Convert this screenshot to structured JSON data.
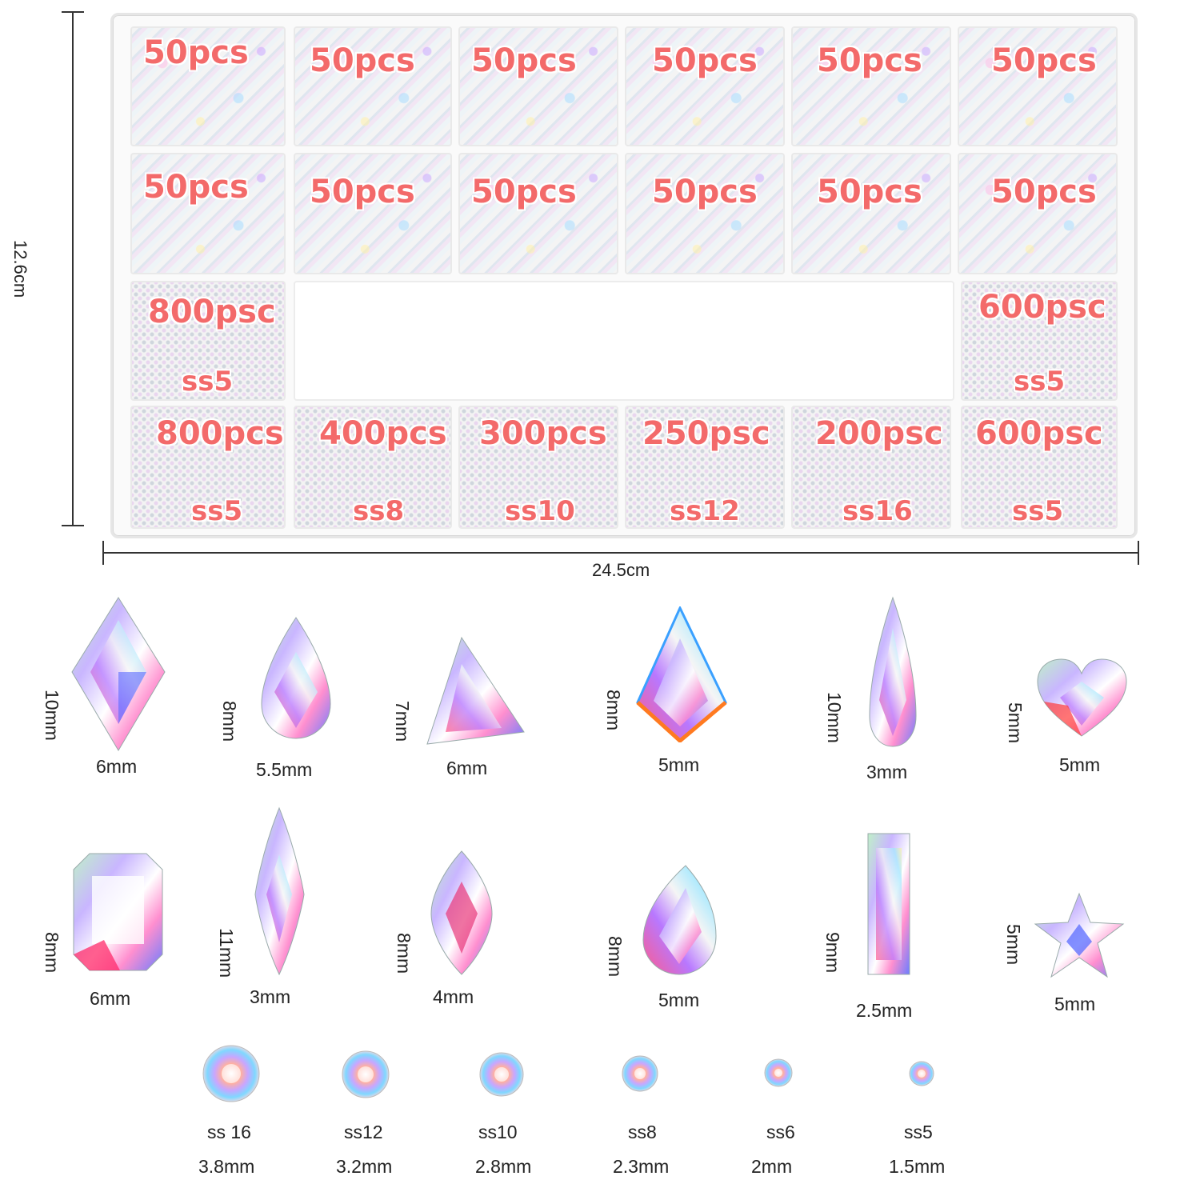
{
  "dimensions": {
    "height": "12.6cm",
    "width": "24.5cm"
  },
  "case": {
    "row1": [
      {
        "count": "50pcs"
      },
      {
        "count": "50pcs"
      },
      {
        "count": "50pcs"
      },
      {
        "count": "50pcs"
      },
      {
        "count": "50pcs"
      },
      {
        "count": "50pcs"
      }
    ],
    "row2": [
      {
        "count": "50pcs"
      },
      {
        "count": "50pcs"
      },
      {
        "count": "50pcs"
      },
      {
        "count": "50pcs"
      },
      {
        "count": "50pcs"
      },
      {
        "count": "50pcs"
      }
    ],
    "row3": [
      {
        "count": "800psc",
        "size": "ss5"
      },
      {
        "count": "600psc",
        "size": "ss5"
      }
    ],
    "row4": [
      {
        "count": "800pcs",
        "size": "ss5"
      },
      {
        "count": "400pcs",
        "size": "ss8"
      },
      {
        "count": "300pcs",
        "size": "ss10"
      },
      {
        "count": "250psc",
        "size": "ss12"
      },
      {
        "count": "200psc",
        "size": "ss16"
      },
      {
        "count": "600psc",
        "size": "ss5"
      }
    ]
  },
  "shapes_row1": [
    {
      "name": "rhombus",
      "height": "10mm",
      "width": "6mm"
    },
    {
      "name": "teardrop",
      "height": "8mm",
      "width": "5.5mm"
    },
    {
      "name": "triangle",
      "height": "7mm",
      "width": "6mm"
    },
    {
      "name": "kite",
      "height": "8mm",
      "width": "5mm"
    },
    {
      "name": "raindrop",
      "height": "10mm",
      "width": "3mm"
    },
    {
      "name": "heart",
      "height": "5mm",
      "width": "5mm"
    }
  ],
  "shapes_row2": [
    {
      "name": "octagon",
      "height": "8mm",
      "width": "6mm"
    },
    {
      "name": "navette",
      "height": "11mm",
      "width": "3mm"
    },
    {
      "name": "horse-eye",
      "height": "8mm",
      "width": "4mm"
    },
    {
      "name": "flame",
      "height": "8mm",
      "width": "5mm"
    },
    {
      "name": "baguette",
      "height": "9mm",
      "width": "2.5mm"
    },
    {
      "name": "star",
      "height": "5mm",
      "width": "5mm"
    }
  ],
  "round_stones": [
    {
      "size": "ss 16",
      "mm": "3.8mm"
    },
    {
      "size": "ss12",
      "mm": "3.2mm"
    },
    {
      "size": "ss10",
      "mm": "2.8mm"
    },
    {
      "size": "ss8",
      "mm": "2.3mm"
    },
    {
      "size": "ss6",
      "mm": "2mm"
    },
    {
      "size": "ss5",
      "mm": "1.5mm"
    }
  ]
}
